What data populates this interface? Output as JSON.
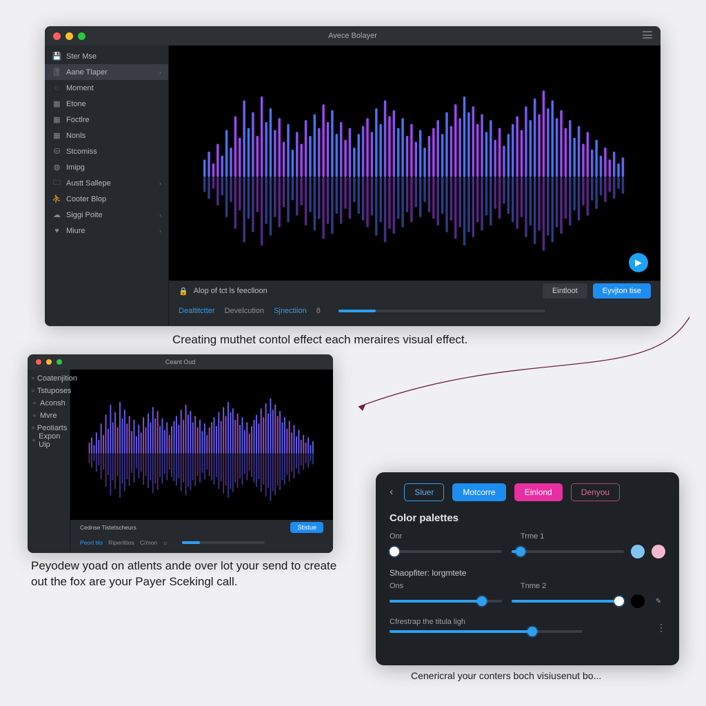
{
  "page_background": "#f0f0f2",
  "main_window": {
    "title": "Avece Bolayer",
    "sidebar": {
      "items": [
        {
          "icon": "save",
          "label": "Ster Mse",
          "chev": false,
          "sel": false
        },
        {
          "icon": "tune",
          "label": "Aane Tlaper",
          "chev": true,
          "sel": true
        },
        {
          "icon": "circle",
          "label": "Moment",
          "chev": false,
          "sel": false
        },
        {
          "icon": "doc",
          "label": "Etone",
          "chev": false,
          "sel": false
        },
        {
          "icon": "doc",
          "label": "Foctlre",
          "chev": false,
          "sel": false
        },
        {
          "icon": "doc",
          "label": "Nonls",
          "chev": false,
          "sel": false
        },
        {
          "icon": "disk",
          "label": "Stcomiss",
          "chev": false,
          "sel": false
        },
        {
          "icon": "globe",
          "label": "Imipg",
          "chev": false,
          "sel": false
        },
        {
          "icon": "folder",
          "label": "Austt Sallepe",
          "chev": true,
          "sel": false
        },
        {
          "icon": "user",
          "label": "Cooter Blop",
          "chev": false,
          "sel": false
        },
        {
          "icon": "cloud",
          "label": "Siggi Poite",
          "chev": true,
          "sel": false
        },
        {
          "icon": "heart",
          "label": "Miure",
          "chev": true,
          "sel": false
        }
      ]
    },
    "visualizer": {
      "background": "#000000",
      "gradient_stops": [
        "#e82fe8",
        "#9b3bf2",
        "#1e8df0",
        "#1e8df0",
        "#9b3bf2",
        "#e82fe8"
      ],
      "bar_count": 96,
      "heights": [
        0.18,
        0.26,
        0.14,
        0.34,
        0.22,
        0.48,
        0.3,
        0.62,
        0.4,
        0.78,
        0.5,
        0.66,
        0.42,
        0.82,
        0.56,
        0.7,
        0.48,
        0.6,
        0.36,
        0.54,
        0.28,
        0.46,
        0.34,
        0.58,
        0.42,
        0.64,
        0.5,
        0.74,
        0.56,
        0.68,
        0.44,
        0.56,
        0.38,
        0.5,
        0.3,
        0.44,
        0.52,
        0.6,
        0.46,
        0.7,
        0.54,
        0.78,
        0.62,
        0.68,
        0.5,
        0.6,
        0.42,
        0.54,
        0.36,
        0.48,
        0.3,
        0.42,
        0.5,
        0.58,
        0.44,
        0.66,
        0.52,
        0.74,
        0.6,
        0.82,
        0.66,
        0.72,
        0.54,
        0.64,
        0.46,
        0.58,
        0.38,
        0.5,
        0.32,
        0.44,
        0.54,
        0.62,
        0.48,
        0.72,
        0.58,
        0.8,
        0.64,
        0.88,
        0.7,
        0.78,
        0.6,
        0.68,
        0.5,
        0.58,
        0.4,
        0.52,
        0.34,
        0.46,
        0.28,
        0.38,
        0.22,
        0.3,
        0.18,
        0.26,
        0.14,
        0.2
      ],
      "fab_icon": "play"
    },
    "toolbar": {
      "lock_label": "Alop of tct ls feeclloon",
      "links": [
        "Dealtitctter",
        "Develcution",
        "Sjnectiion"
      ],
      "badge": "8",
      "progress_pct": 18,
      "btn_primary": "Eyvjton tise",
      "btn_secondary": "Eintloot"
    }
  },
  "caption1": "Creating muthet contol effect each meraires visual effect.",
  "small_window": {
    "title": "Ceant Oud",
    "sidebar_items": [
      {
        "label": "Coatenjition"
      },
      {
        "label": "Tstuposes"
      },
      {
        "label": "Aconsh"
      },
      {
        "label": "Mvre"
      },
      {
        "label": "Peotiarts"
      },
      {
        "label": "Expon Uip"
      }
    ],
    "toolbar": {
      "label": "Cednse Tistetscheurs",
      "links": [
        "Peort tils",
        "Riperittios",
        "C/mon"
      ],
      "badge": "☼",
      "btn": "Stistue",
      "progress_pct": 22
    }
  },
  "caption2": "Peyodew yoad on atlents ande over lot your send to create out the fox are your Payer Scekingl call.",
  "panel": {
    "tabs": [
      {
        "label": "Sluer",
        "style": "outline"
      },
      {
        "label": "Motcorre",
        "style": "blue"
      },
      {
        "label": "Einlond",
        "style": "pink"
      },
      {
        "label": "Denyou",
        "style": "ghost"
      }
    ],
    "heading": "Color palettes",
    "row1": {
      "left_label": "Onr",
      "right_label": "Trme 1",
      "slider_a_pct": 4,
      "slider_b_pct": 8,
      "swatch_a": "#7ec5f4",
      "swatch_b": "#f2b8cc"
    },
    "subheading": "Shaopfiter: lorgmtete",
    "row2": {
      "left_label": "Ons",
      "right_label": "Tnme 2",
      "slider_a_pct": 82,
      "slider_b_pct": 96,
      "swatch": "#000000",
      "edit": true
    },
    "row3": {
      "label": "Cfrestrap the titula ligh",
      "slider_pct": 74
    }
  },
  "caption3": "Cenericral your conters boch visiusenut bo...",
  "arrow_color": "#6b2438"
}
